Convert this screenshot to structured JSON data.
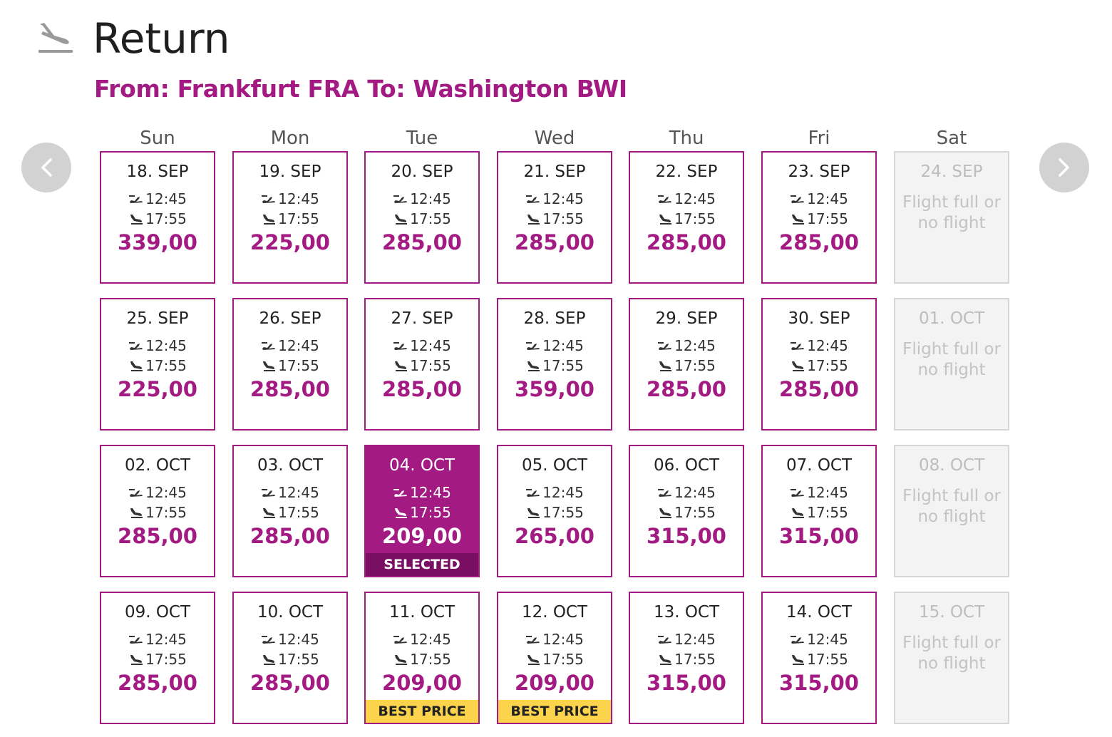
{
  "header": {
    "title": "Return",
    "route": "From: Frankfurt FRA To: Washington BWI",
    "icon": "plane-landing-icon"
  },
  "navigation": {
    "prev_icon": "chevron-left-icon",
    "next_icon": "chevron-right-icon"
  },
  "weekdays": [
    "Sun",
    "Mon",
    "Tue",
    "Wed",
    "Thu",
    "Fri",
    "Sat"
  ],
  "colors": {
    "accent": "#a21a82",
    "selected_badge": "#7a0e62",
    "best_price_badge": "#fbd34c",
    "disabled_text": "#c3c3c3"
  },
  "weeks": [
    [
      {
        "date": "18. SEP",
        "dep": "12:45",
        "arr": "17:55",
        "price": "339,00"
      },
      {
        "date": "19. SEP",
        "dep": "12:45",
        "arr": "17:55",
        "price": "225,00"
      },
      {
        "date": "20. SEP",
        "dep": "12:45",
        "arr": "17:55",
        "price": "285,00"
      },
      {
        "date": "21. SEP",
        "dep": "12:45",
        "arr": "17:55",
        "price": "285,00"
      },
      {
        "date": "22. SEP",
        "dep": "12:45",
        "arr": "17:55",
        "price": "285,00"
      },
      {
        "date": "23. SEP",
        "dep": "12:45",
        "arr": "17:55",
        "price": "285,00"
      },
      {
        "date": "24. SEP",
        "unavailable": true,
        "na_line1": "Flight full or",
        "na_line2": "no flight"
      }
    ],
    [
      {
        "date": "25. SEP",
        "dep": "12:45",
        "arr": "17:55",
        "price": "225,00"
      },
      {
        "date": "26. SEP",
        "dep": "12:45",
        "arr": "17:55",
        "price": "285,00"
      },
      {
        "date": "27. SEP",
        "dep": "12:45",
        "arr": "17:55",
        "price": "285,00"
      },
      {
        "date": "28. SEP",
        "dep": "12:45",
        "arr": "17:55",
        "price": "359,00"
      },
      {
        "date": "29. SEP",
        "dep": "12:45",
        "arr": "17:55",
        "price": "285,00"
      },
      {
        "date": "30. SEP",
        "dep": "12:45",
        "arr": "17:55",
        "price": "285,00"
      },
      {
        "date": "01. OCT",
        "unavailable": true,
        "na_line1": "Flight full or",
        "na_line2": "no flight"
      }
    ],
    [
      {
        "date": "02. OCT",
        "dep": "12:45",
        "arr": "17:55",
        "price": "285,00"
      },
      {
        "date": "03. OCT",
        "dep": "12:45",
        "arr": "17:55",
        "price": "285,00"
      },
      {
        "date": "04. OCT",
        "dep": "12:45",
        "arr": "17:55",
        "price": "209,00",
        "selected": true,
        "badge": "SELECTED"
      },
      {
        "date": "05. OCT",
        "dep": "12:45",
        "arr": "17:55",
        "price": "265,00"
      },
      {
        "date": "06. OCT",
        "dep": "12:45",
        "arr": "17:55",
        "price": "315,00"
      },
      {
        "date": "07. OCT",
        "dep": "12:45",
        "arr": "17:55",
        "price": "315,00"
      },
      {
        "date": "08. OCT",
        "unavailable": true,
        "na_line1": "Flight full or",
        "na_line2": "no flight"
      }
    ],
    [
      {
        "date": "09. OCT",
        "dep": "12:45",
        "arr": "17:55",
        "price": "285,00"
      },
      {
        "date": "10. OCT",
        "dep": "12:45",
        "arr": "17:55",
        "price": "285,00"
      },
      {
        "date": "11. OCT",
        "dep": "12:45",
        "arr": "17:55",
        "price": "209,00",
        "badge": "BEST PRICE",
        "best": true
      },
      {
        "date": "12. OCT",
        "dep": "12:45",
        "arr": "17:55",
        "price": "209,00",
        "badge": "BEST PRICE",
        "best": true
      },
      {
        "date": "13. OCT",
        "dep": "12:45",
        "arr": "17:55",
        "price": "315,00"
      },
      {
        "date": "14. OCT",
        "dep": "12:45",
        "arr": "17:55",
        "price": "315,00"
      },
      {
        "date": "15. OCT",
        "unavailable": true,
        "na_line1": "Flight full or",
        "na_line2": "no flight"
      }
    ]
  ]
}
